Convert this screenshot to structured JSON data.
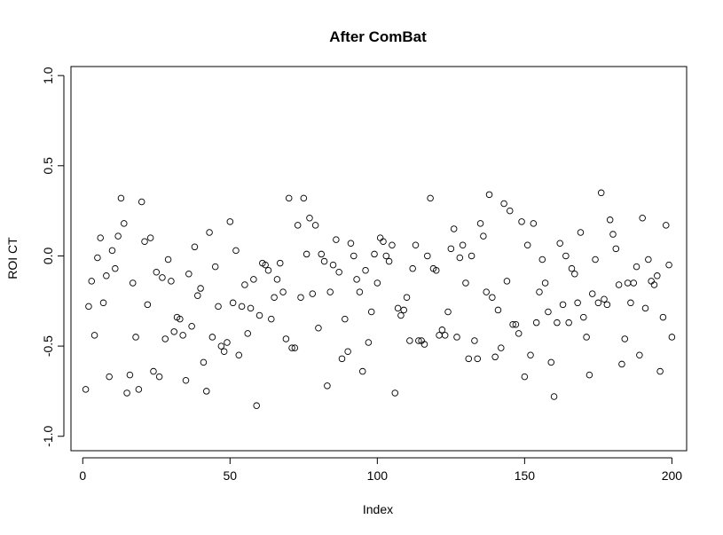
{
  "chart_data": {
    "type": "scatter",
    "title": "After ComBat",
    "xlabel": "Index",
    "ylabel": "ROI CT",
    "xlim": [
      -4,
      205
    ],
    "ylim": [
      -1.08,
      1.05
    ],
    "x_ticks": [
      0,
      50,
      100,
      150,
      200
    ],
    "x_tick_labels": [
      "0",
      "50",
      "100",
      "150",
      "200"
    ],
    "y_ticks": [
      -1.0,
      -0.5,
      0.0,
      0.5,
      1.0
    ],
    "y_tick_labels": [
      "-1.0",
      "-0.5",
      "0.0",
      "0.5",
      "1.0"
    ],
    "grid": false,
    "marker": "open-circle",
    "x": [
      1,
      2,
      3,
      4,
      5,
      6,
      7,
      8,
      9,
      10,
      11,
      12,
      13,
      14,
      15,
      16,
      17,
      18,
      19,
      20,
      21,
      22,
      23,
      24,
      25,
      26,
      27,
      28,
      29,
      30,
      31,
      32,
      33,
      34,
      35,
      36,
      37,
      38,
      39,
      40,
      41,
      42,
      43,
      44,
      45,
      46,
      47,
      48,
      49,
      50,
      51,
      52,
      53,
      54,
      55,
      56,
      57,
      58,
      59,
      60,
      61,
      62,
      63,
      64,
      65,
      66,
      67,
      68,
      69,
      70,
      71,
      72,
      73,
      74,
      75,
      76,
      77,
      78,
      79,
      80,
      81,
      82,
      83,
      84,
      85,
      86,
      87,
      88,
      89,
      90,
      91,
      92,
      93,
      94,
      95,
      96,
      97,
      98,
      99,
      100,
      101,
      102,
      103,
      104,
      105,
      106,
      107,
      108,
      109,
      110,
      111,
      112,
      113,
      114,
      115,
      116,
      117,
      118,
      119,
      120,
      121,
      122,
      123,
      124,
      125,
      126,
      127,
      128,
      129,
      130,
      131,
      132,
      133,
      134,
      135,
      136,
      137,
      138,
      139,
      140,
      141,
      142,
      143,
      144,
      145,
      146,
      147,
      148,
      149,
      150,
      151,
      152,
      153,
      154,
      155,
      156,
      157,
      158,
      159,
      160,
      161,
      162,
      163,
      164,
      165,
      166,
      167,
      168,
      169,
      170,
      171,
      172,
      173,
      174,
      175,
      176,
      177,
      178,
      179,
      180,
      181,
      182,
      183,
      184,
      185,
      186,
      187,
      188,
      189,
      190,
      191,
      192,
      193,
      194,
      195,
      196,
      197,
      198,
      199,
      200
    ],
    "y": [
      -0.74,
      -0.28,
      -0.14,
      -0.44,
      -0.01,
      0.1,
      -0.26,
      -0.11,
      -0.67,
      0.03,
      -0.07,
      0.11,
      0.32,
      0.18,
      -0.76,
      -0.66,
      -0.15,
      -0.45,
      -0.74,
      0.3,
      0.08,
      -0.27,
      0.1,
      -0.64,
      -0.09,
      -0.67,
      -0.12,
      -0.46,
      -0.02,
      -0.14,
      -0.42,
      -0.34,
      -0.35,
      -0.44,
      -0.69,
      -0.1,
      -0.39,
      0.05,
      -0.22,
      -0.18,
      -0.59,
      -0.75,
      0.13,
      -0.45,
      -0.06,
      -0.28,
      -0.5,
      -0.53,
      -0.48,
      0.19,
      -0.26,
      0.03,
      -0.55,
      -0.28,
      -0.16,
      -0.43,
      -0.29,
      -0.13,
      -0.83,
      -0.33,
      -0.04,
      -0.05,
      -0.08,
      -0.35,
      -0.23,
      -0.13,
      -0.04,
      -0.2,
      -0.46,
      0.32,
      -0.51,
      -0.51,
      0.17,
      -0.23,
      0.32,
      0.01,
      0.21,
      -0.21,
      0.17,
      -0.4,
      0.01,
      -0.03,
      -0.72,
      -0.2,
      -0.05,
      0.09,
      -0.09,
      -0.57,
      -0.35,
      -0.53,
      0.07,
      0.0,
      -0.13,
      -0.2,
      -0.64,
      -0.08,
      -0.48,
      -0.31,
      0.01,
      -0.15,
      0.1,
      0.08,
      0.0,
      -0.03,
      0.06,
      -0.76,
      -0.29,
      -0.33,
      -0.3,
      -0.23,
      -0.47,
      -0.07,
      0.06,
      -0.47,
      -0.47,
      -0.49,
      0.0,
      0.32,
      -0.07,
      -0.08,
      -0.44,
      -0.41,
      -0.44,
      -0.31,
      0.04,
      0.15,
      -0.45,
      -0.01,
      0.06,
      -0.15,
      -0.57,
      0.0,
      -0.47,
      -0.57,
      0.18,
      0.11,
      -0.2,
      0.34,
      -0.23,
      -0.56,
      -0.3,
      -0.51,
      0.29,
      -0.14,
      0.25,
      -0.38,
      -0.38,
      -0.43,
      0.19,
      -0.67,
      0.06,
      -0.55,
      0.18,
      -0.37,
      -0.2,
      -0.02,
      -0.15,
      -0.31,
      -0.59,
      -0.78,
      -0.37,
      0.07,
      -0.27,
      0.0,
      -0.37,
      -0.07,
      -0.1,
      -0.26,
      0.13,
      -0.34,
      -0.45,
      -0.66,
      -0.21,
      -0.02,
      -0.26,
      0.35,
      -0.24,
      -0.27,
      0.2,
      0.12,
      0.04,
      -0.16,
      -0.6,
      -0.46,
      -0.15,
      -0.26,
      -0.15,
      -0.06,
      -0.55,
      0.21,
      -0.29,
      -0.02,
      -0.14,
      -0.16,
      -0.11,
      -0.64,
      -0.34,
      0.17,
      -0.05,
      -0.45
    ]
  }
}
